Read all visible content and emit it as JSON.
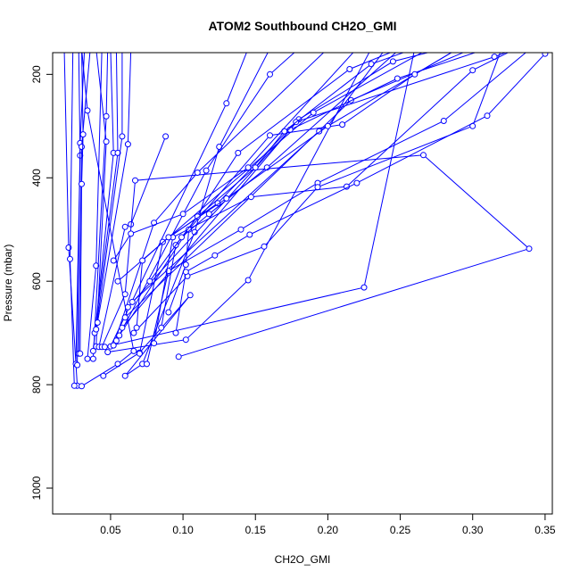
{
  "chart_data": {
    "type": "line",
    "title": "ATOM2 Southbound CH2O_GMI",
    "xlabel": "CH2O_GMI",
    "ylabel": "Pressure (mbar)",
    "xlim": [
      0.01,
      0.355
    ],
    "ylim": [
      1050,
      158
    ],
    "y_reversed": true,
    "xticks": [
      0.05,
      0.1,
      0.15,
      0.2,
      0.25,
      0.3,
      0.35
    ],
    "xtick_labels": [
      "0.05",
      "0.10",
      "0.15",
      "0.20",
      "0.25",
      "0.30",
      "0.35"
    ],
    "yticks": [
      200,
      400,
      600,
      800,
      1000
    ],
    "ytick_labels": [
      "200",
      "400",
      "600",
      "800",
      "1000"
    ],
    "grid": false,
    "series_color": "#0000ff",
    "series": [
      {
        "points": [
          [
            0.027,
            802
          ],
          [
            0.021,
            535
          ],
          [
            0.018,
            150
          ]
        ]
      },
      {
        "points": [
          [
            0.025,
            802
          ],
          [
            0.022,
            557
          ],
          [
            0.024,
            150
          ]
        ]
      },
      {
        "points": [
          [
            0.026,
            760
          ],
          [
            0.029,
            357
          ],
          [
            0.028,
            150
          ]
        ]
      },
      {
        "points": [
          [
            0.027,
            762
          ],
          [
            0.029,
            333
          ],
          [
            0.032,
            150
          ]
        ]
      },
      {
        "points": [
          [
            0.028,
            740
          ],
          [
            0.03,
            340
          ],
          [
            0.036,
            150
          ]
        ]
      },
      {
        "points": [
          [
            0.029,
            740
          ],
          [
            0.03,
            412
          ],
          [
            0.031,
            316
          ],
          [
            0.03,
            150
          ]
        ]
      },
      {
        "points": [
          [
            0.03,
            803
          ],
          [
            0.055,
            760
          ],
          [
            0.066,
            735
          ],
          [
            0.034,
            270
          ],
          [
            0.03,
            150
          ]
        ]
      },
      {
        "points": [
          [
            0.034,
            750
          ],
          [
            0.04,
            570
          ],
          [
            0.044,
            150
          ]
        ]
      },
      {
        "points": [
          [
            0.038,
            750
          ],
          [
            0.047,
            281
          ],
          [
            0.048,
            150
          ]
        ]
      },
      {
        "points": [
          [
            0.04,
            726
          ],
          [
            0.047,
            330
          ],
          [
            0.04,
            150
          ]
        ]
      },
      {
        "points": [
          [
            0.038,
            735
          ],
          [
            0.052,
            352
          ],
          [
            0.05,
            150
          ]
        ]
      },
      {
        "points": [
          [
            0.039,
            700
          ],
          [
            0.055,
            352
          ],
          [
            0.054,
            150
          ]
        ]
      },
      {
        "points": [
          [
            0.04,
            693
          ],
          [
            0.058,
            320
          ],
          [
            0.058,
            150
          ]
        ]
      },
      {
        "points": [
          [
            0.041,
            680
          ],
          [
            0.062,
            335
          ],
          [
            0.064,
            150
          ]
        ]
      },
      {
        "points": [
          [
            0.045,
            783
          ],
          [
            0.07,
            738
          ],
          [
            0.105,
            627
          ],
          [
            0.06,
            783
          ],
          [
            0.072,
            760
          ],
          [
            0.108,
            505
          ],
          [
            0.125,
            340
          ],
          [
            0.16,
            150
          ]
        ]
      },
      {
        "points": [
          [
            0.042,
            727
          ],
          [
            0.06,
            495
          ],
          [
            0.064,
            490
          ],
          [
            0.088,
            320
          ]
        ]
      },
      {
        "points": [
          [
            0.044,
            727
          ],
          [
            0.06,
            625
          ],
          [
            0.067,
            405
          ],
          [
            0.266,
            356
          ],
          [
            0.339,
            537
          ],
          [
            0.097,
            746
          ]
        ]
      },
      {
        "points": [
          [
            0.046,
            727
          ],
          [
            0.225,
            612
          ],
          [
            0.26,
            150
          ]
        ]
      },
      {
        "points": [
          [
            0.048,
            737
          ],
          [
            0.102,
            713
          ],
          [
            0.145,
            598
          ],
          [
            0.23,
            150
          ]
        ]
      },
      {
        "points": [
          [
            0.05,
            726
          ],
          [
            0.13,
            256
          ],
          [
            0.145,
            150
          ]
        ]
      },
      {
        "points": [
          [
            0.052,
            724
          ],
          [
            0.08,
            487
          ],
          [
            0.11,
            390
          ],
          [
            0.2,
            150
          ]
        ]
      },
      {
        "points": [
          [
            0.054,
            715
          ],
          [
            0.116,
            386
          ],
          [
            0.16,
            200
          ],
          [
            0.18,
            150
          ]
        ]
      },
      {
        "points": [
          [
            0.056,
            705
          ],
          [
            0.138,
            352
          ],
          [
            0.215,
            190
          ],
          [
            0.25,
            150
          ]
        ]
      },
      {
        "points": [
          [
            0.058,
            690
          ],
          [
            0.18,
            287
          ],
          [
            0.245,
            175
          ],
          [
            0.28,
            150
          ]
        ]
      },
      {
        "points": [
          [
            0.06,
            670
          ],
          [
            0.216,
            250
          ],
          [
            0.3,
            150
          ]
        ]
      },
      {
        "points": [
          [
            0.055,
            600
          ],
          [
            0.19,
            274
          ],
          [
            0.27,
            150
          ]
        ]
      },
      {
        "points": [
          [
            0.062,
            650
          ],
          [
            0.174,
            307
          ],
          [
            0.248,
            208
          ],
          [
            0.31,
            150
          ]
        ]
      },
      {
        "points": [
          [
            0.065,
            640
          ],
          [
            0.194,
            310
          ],
          [
            0.29,
            150
          ]
        ]
      },
      {
        "points": [
          [
            0.07,
            740
          ],
          [
            0.086,
            524
          ],
          [
            0.124,
            449
          ],
          [
            0.178,
            292
          ],
          [
            0.315,
            166
          ],
          [
            0.33,
            150
          ]
        ]
      },
      {
        "points": [
          [
            0.075,
            760
          ],
          [
            0.09,
            580
          ],
          [
            0.14,
            500
          ],
          [
            0.193,
            410
          ],
          [
            0.28,
            290
          ],
          [
            0.34,
            150
          ]
        ]
      },
      {
        "points": [
          [
            0.066,
            700
          ],
          [
            0.103,
            590
          ],
          [
            0.156,
            533
          ],
          [
            0.193,
            418
          ],
          [
            0.3,
            300
          ],
          [
            0.32,
            150
          ]
        ]
      },
      {
        "points": [
          [
            0.08,
            720
          ],
          [
            0.093,
            515
          ],
          [
            0.147,
            437
          ],
          [
            0.213,
            417
          ],
          [
            0.3,
            192
          ],
          [
            0.33,
            150
          ]
        ]
      },
      {
        "points": [
          [
            0.095,
            700
          ],
          [
            0.102,
            582
          ],
          [
            0.122,
            550
          ],
          [
            0.146,
            510
          ],
          [
            0.22,
            410
          ],
          [
            0.31,
            280
          ],
          [
            0.35,
            160
          ]
        ]
      },
      {
        "points": [
          [
            0.09,
            660
          ],
          [
            0.102,
            568
          ],
          [
            0.104,
            500
          ],
          [
            0.16,
            318
          ],
          [
            0.21,
            297
          ],
          [
            0.26,
            200
          ],
          [
            0.29,
            150
          ]
        ]
      },
      {
        "points": [
          [
            0.085,
            690
          ],
          [
            0.095,
            530
          ],
          [
            0.11,
            475
          ],
          [
            0.15,
            380
          ],
          [
            0.17,
            310
          ],
          [
            0.23,
            180
          ],
          [
            0.26,
            150
          ]
        ]
      },
      {
        "points": [
          [
            0.077,
            600
          ],
          [
            0.099,
            515
          ],
          [
            0.118,
            470
          ],
          [
            0.158,
            380
          ],
          [
            0.25,
            150
          ]
        ]
      },
      {
        "points": [
          [
            0.068,
            690
          ],
          [
            0.072,
            560
          ],
          [
            0.09,
            515
          ],
          [
            0.13,
            440
          ],
          [
            0.2,
            300
          ],
          [
            0.24,
            150
          ]
        ]
      },
      {
        "points": [
          [
            0.052,
            560
          ],
          [
            0.064,
            508
          ],
          [
            0.1,
            470
          ],
          [
            0.145,
            380
          ],
          [
            0.22,
            150
          ]
        ]
      }
    ]
  }
}
